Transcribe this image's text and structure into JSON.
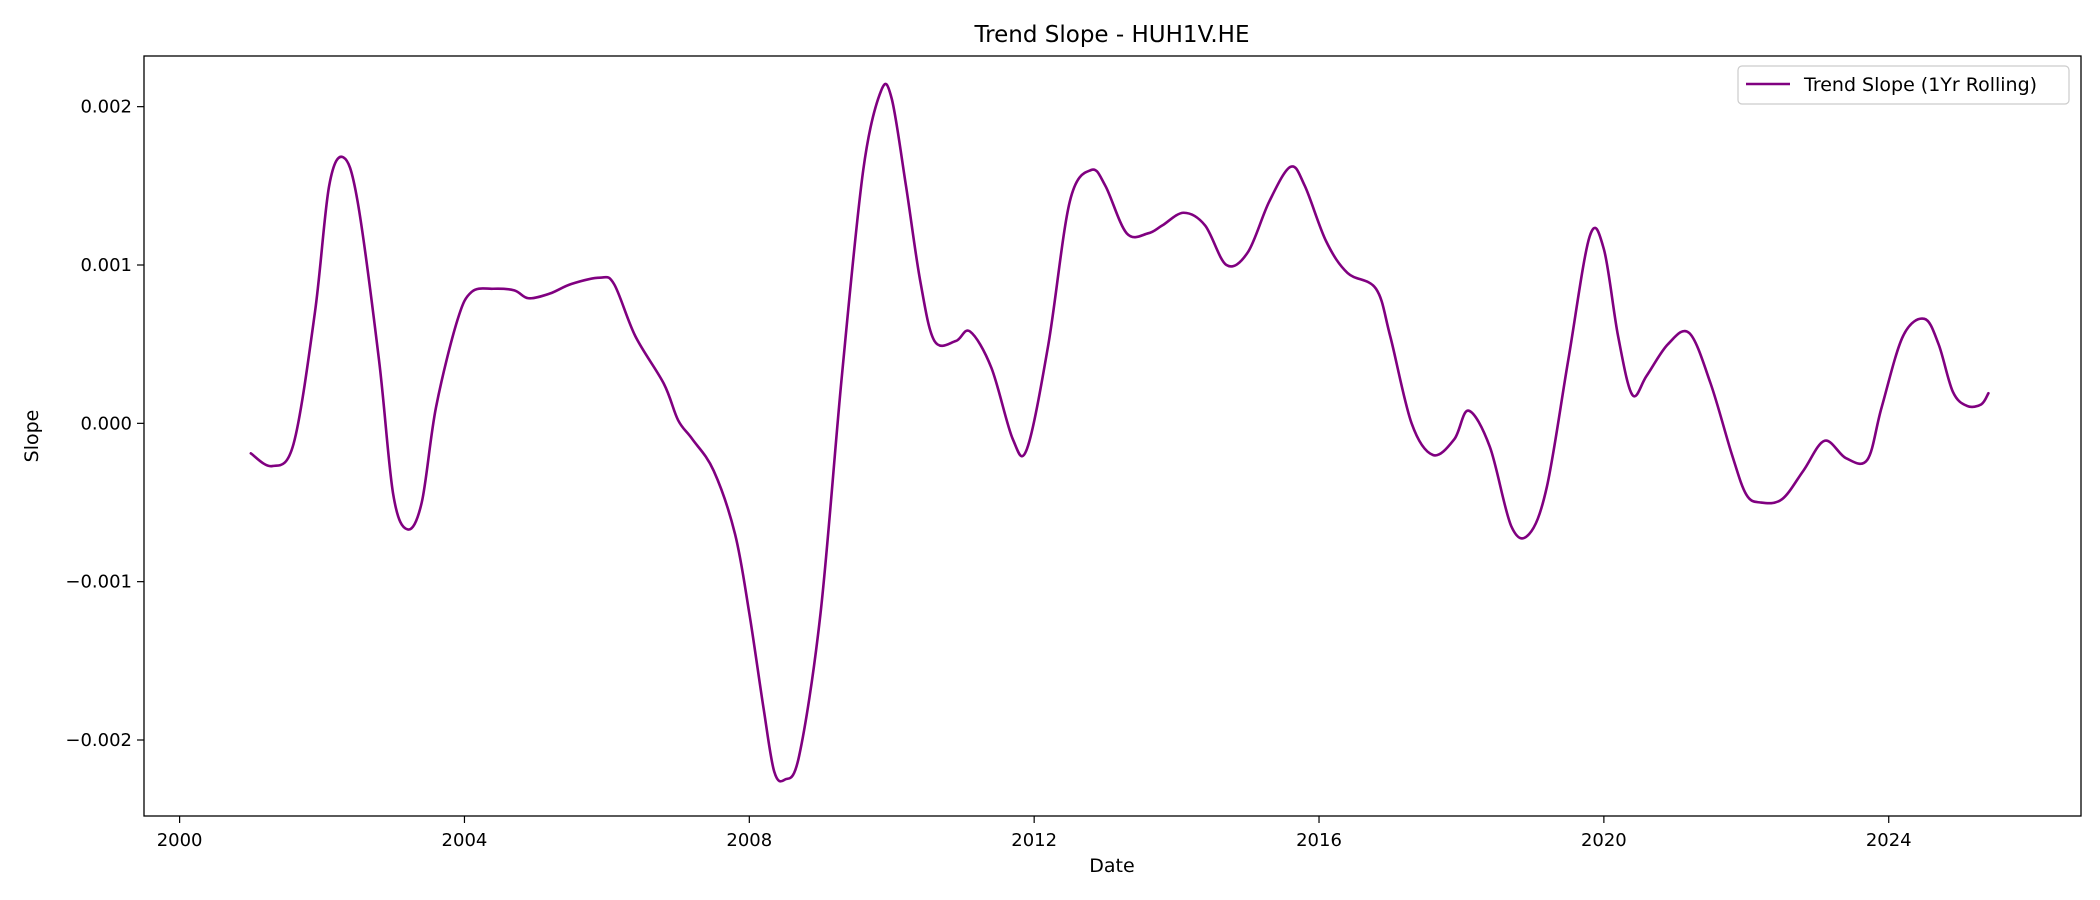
{
  "chart_data": {
    "type": "line",
    "title": "Trend Slope - HUH1V.HE",
    "xlabel": "Date",
    "ylabel": "Slope",
    "xlim": [
      1999.5,
      2026.7
    ],
    "ylim": [
      -0.00248,
      0.00232
    ],
    "x_ticks": [
      2000,
      2004,
      2008,
      2012,
      2016,
      2020,
      2024
    ],
    "x_tick_labels": [
      "2000",
      "2004",
      "2008",
      "2012",
      "2016",
      "2020",
      "2024"
    ],
    "y_ticks": [
      -0.002,
      -0.001,
      0.0,
      0.001,
      0.002
    ],
    "y_tick_labels": [
      "−0.002",
      "−0.001",
      "0.000",
      "0.001",
      "0.002"
    ],
    "grid": false,
    "legend_position": "top-right",
    "series": [
      {
        "name": "Trend Slope (1Yr Rolling)",
        "color": "#800080",
        "x": [
          2001.0,
          2001.3,
          2001.6,
          2001.9,
          2002.1,
          2002.3,
          2002.5,
          2002.8,
          2003.0,
          2003.2,
          2003.4,
          2003.6,
          2003.9,
          2004.1,
          2004.4,
          2004.7,
          2004.9,
          2005.2,
          2005.5,
          2005.9,
          2006.1,
          2006.4,
          2006.8,
          2007.0,
          2007.2,
          2007.5,
          2007.8,
          2008.0,
          2008.2,
          2008.35,
          2008.5,
          2008.7,
          2009.0,
          2009.3,
          2009.6,
          2009.85,
          2010.0,
          2010.2,
          2010.4,
          2010.6,
          2010.9,
          2011.1,
          2011.4,
          2011.7,
          2011.9,
          2012.2,
          2012.5,
          2012.8,
          2013.0,
          2013.3,
          2013.6,
          2013.8,
          2014.1,
          2014.4,
          2014.7,
          2015.0,
          2015.3,
          2015.6,
          2015.8,
          2016.1,
          2016.4,
          2016.8,
          2017.0,
          2017.3,
          2017.6,
          2017.9,
          2018.1,
          2018.4,
          2018.7,
          2018.95,
          2019.2,
          2019.5,
          2019.8,
          2020.0,
          2020.2,
          2020.4,
          2020.6,
          2020.9,
          2021.2,
          2021.5,
          2021.8,
          2022.0,
          2022.2,
          2022.5,
          2022.8,
          2023.1,
          2023.4,
          2023.7,
          2023.9,
          2024.2,
          2024.5,
          2024.7,
          2024.9,
          2025.1,
          2025.3,
          2025.4
        ],
        "y": [
          -0.00019,
          -0.00027,
          -0.00013,
          0.0007,
          0.0015,
          0.00168,
          0.0014,
          0.0004,
          -0.00045,
          -0.00067,
          -0.0005,
          0.0001,
          0.00065,
          0.00083,
          0.00085,
          0.00084,
          0.00079,
          0.00082,
          0.00088,
          0.00092,
          0.00088,
          0.00055,
          0.00025,
          2e-05,
          -0.0001,
          -0.0003,
          -0.0007,
          -0.0012,
          -0.0018,
          -0.0022,
          -0.00225,
          -0.0021,
          -0.0012,
          0.0003,
          0.0016,
          0.0021,
          0.00205,
          0.0015,
          0.0009,
          0.00052,
          0.00052,
          0.00058,
          0.00035,
          -0.0001,
          -0.00016,
          0.0005,
          0.0014,
          0.0016,
          0.0015,
          0.0012,
          0.0012,
          0.00125,
          0.00133,
          0.00125,
          0.001,
          0.00108,
          0.0014,
          0.00162,
          0.0015,
          0.00115,
          0.00095,
          0.00085,
          0.00055,
          0.0,
          -0.0002,
          -0.0001,
          8e-05,
          -0.00015,
          -0.00065,
          -0.0007,
          -0.0004,
          0.0004,
          0.00118,
          0.0011,
          0.00055,
          0.00018,
          0.0003,
          0.0005,
          0.00057,
          0.00025,
          -0.0002,
          -0.00045,
          -0.0005,
          -0.00048,
          -0.0003,
          -0.00011,
          -0.00022,
          -0.00023,
          0.0001,
          0.00055,
          0.00066,
          0.0005,
          0.0002,
          0.00011,
          0.00012,
          0.00019
        ]
      }
    ]
  }
}
